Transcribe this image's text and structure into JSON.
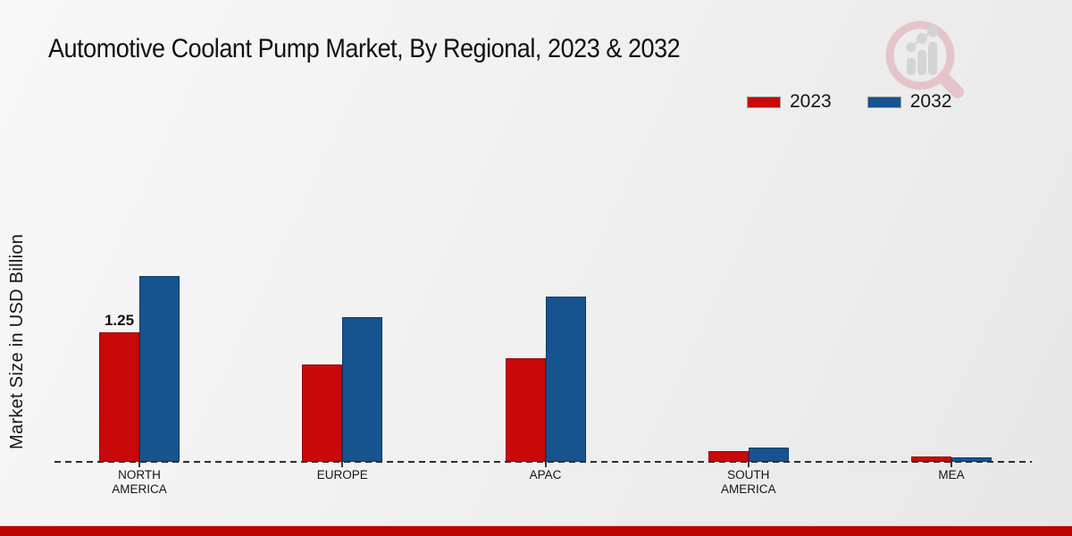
{
  "title": "Automotive Coolant Pump Market, By Regional, 2023 & 2032",
  "y_axis_label": "Market Size in USD Billion",
  "legend": {
    "items": [
      {
        "label": "2023",
        "color": "#c9080a"
      },
      {
        "label": "2032",
        "color": "#17538f"
      }
    ]
  },
  "chart_data": {
    "type": "bar",
    "title": "Automotive Coolant Pump Market, By Regional, 2023 & 2032",
    "ylabel": "Market Size in USD Billion",
    "xlabel": "",
    "categories": [
      "NORTH AMERICA",
      "EUROPE",
      "APAC",
      "SOUTH AMERICA",
      "MEA"
    ],
    "series": [
      {
        "name": "2023",
        "color": "#c9080a",
        "border_color": "#8f0406",
        "values": [
          1.25,
          0.94,
          1.0,
          0.1,
          0.05
        ],
        "data_labels": [
          "1.25",
          "",
          "",
          "",
          ""
        ]
      },
      {
        "name": "2032",
        "color": "#17538f",
        "border_color": "#0d3a66",
        "values": [
          1.8,
          1.4,
          1.6,
          0.14,
          0.04
        ],
        "data_labels": [
          "",
          "",
          "",
          "",
          ""
        ]
      }
    ],
    "ylim": [
      0,
      2.0
    ],
    "grid": "dashed zero baseline only",
    "legend_position": "top-right"
  },
  "footer": {
    "color": "#bd0404"
  },
  "watermark_icon": "magnifier-growth-chart-logo"
}
